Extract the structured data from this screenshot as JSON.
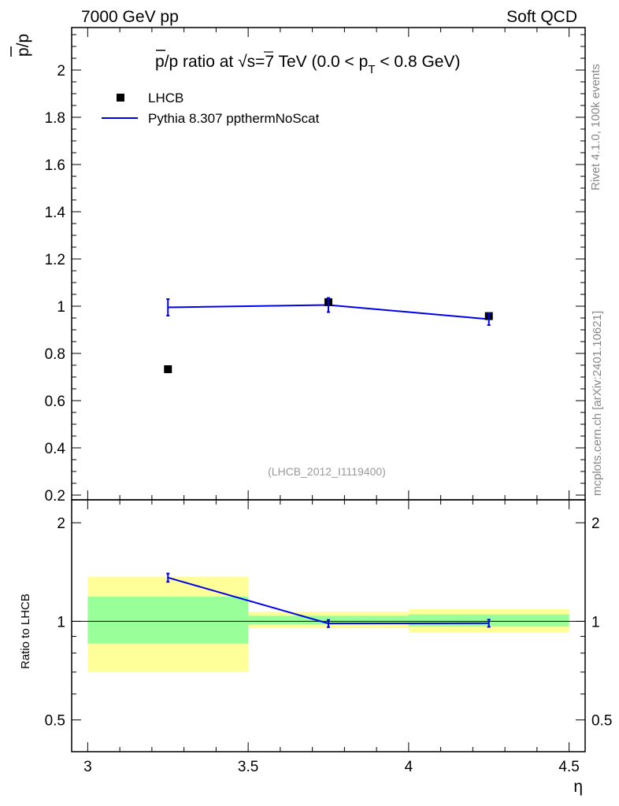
{
  "header": {
    "energy_label": "7000 GeV pp",
    "process_label": "Soft QCD"
  },
  "side_labels": {
    "rivet": "Rivet 4.1.0,  100k events",
    "mcplots": "mcplots.cern.ch [arXiv:2401.10621]"
  },
  "chart_data": [
    {
      "type": "scatter",
      "title": "p̄/p ratio at √s=7 TeV (0.0 < pT < 0.8 GeV)",
      "title_parts": {
        "prefix": "p",
        "ratio_rest": "/p ratio at ",
        "sqrt": "√",
        "s": "s",
        "energy": "=7 TeV (0.0 < p",
        "sub": "T",
        "suffix": " < 0.8 GeV)"
      },
      "ylabel": "p̄/p",
      "ylabel_parts": {
        "p1": "p",
        "slash": "/p"
      },
      "xlabel": "η",
      "xlim": [
        2.95,
        4.55
      ],
      "ylim": [
        0.18,
        2.18
      ],
      "yticks": [
        0.2,
        0.4,
        0.6,
        0.8,
        1,
        1.2,
        1.4,
        1.6,
        1.8,
        2
      ],
      "ytick_labels": [
        "0.2",
        "0.4",
        "0.6",
        "0.8",
        "1",
        "1.2",
        "1.4",
        "1.6",
        "1.8",
        "2"
      ],
      "watermark": "(LHCB_2012_I1119400)",
      "legend": [
        {
          "label": "LHCB",
          "marker": "square",
          "color": "#000000"
        },
        {
          "label": "Pythia 8.307 ppthermNoScat",
          "marker": "line",
          "color": "#0000ee"
        }
      ],
      "series": [
        {
          "name": "LHCB",
          "x": [
            3.25,
            3.75,
            4.25
          ],
          "y": [
            0.733,
            1.017,
            0.958
          ],
          "yerr": [
            0.003,
            0.003,
            0.003
          ]
        },
        {
          "name": "Pythia 8.307 ppthermNoScat",
          "x": [
            3.25,
            3.75,
            4.25
          ],
          "y": [
            0.995,
            1.005,
            0.945
          ],
          "yerr": [
            0.035,
            0.03,
            0.025
          ]
        }
      ]
    },
    {
      "type": "ratio",
      "ylabel": "Ratio to LHCB",
      "xlabel": "η",
      "yscale": "log",
      "xlim": [
        2.95,
        4.55
      ],
      "ylim": [
        0.4,
        2.35
      ],
      "xticks": [
        3,
        3.5,
        4,
        4.5
      ],
      "xtick_labels": [
        "3",
        "3.5",
        "4",
        "4.5"
      ],
      "yticks": [
        0.5,
        1,
        2
      ],
      "ytick_labels": [
        "0.5",
        "1",
        "2"
      ],
      "bands": [
        {
          "x_low": 3.0,
          "x_high": 3.5,
          "stat_low": 0.855,
          "stat_high": 1.19,
          "total_low": 0.7,
          "total_high": 1.37
        },
        {
          "x_low": 3.5,
          "x_high": 4.0,
          "stat_low": 0.98,
          "stat_high": 1.04,
          "total_low": 0.953,
          "total_high": 1.07
        },
        {
          "x_low": 4.0,
          "x_high": 4.5,
          "stat_low": 0.965,
          "stat_high": 1.05,
          "total_low": 0.925,
          "total_high": 1.09
        }
      ],
      "band_colors": {
        "total": "#ffff99",
        "stat": "#99ff99"
      },
      "series": [
        {
          "name": "Pythia 8.307 ppthermNoScat / LHCB",
          "x": [
            3.25,
            3.75,
            4.25
          ],
          "y": [
            1.36,
            0.985,
            0.987
          ],
          "yerr": [
            0.04,
            0.025,
            0.025
          ]
        }
      ]
    }
  ]
}
